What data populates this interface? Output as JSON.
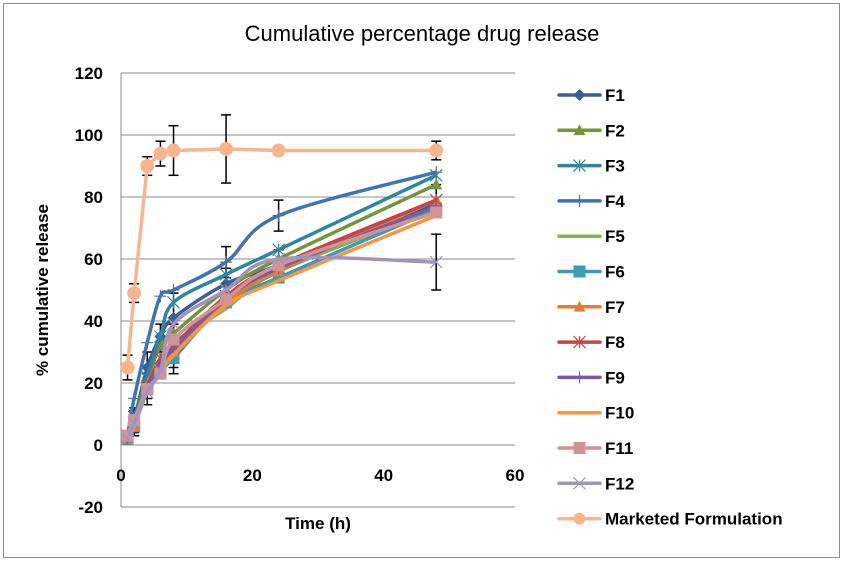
{
  "chart_data": {
    "type": "line",
    "title": "Cumulative percentage drug release",
    "xlabel": "Time (h)",
    "ylabel": "% cumulative release",
    "xlim": [
      0,
      60
    ],
    "ylim": [
      -20,
      120
    ],
    "x_ticks": [
      0,
      20,
      40,
      60
    ],
    "y_ticks": [
      -20,
      0,
      20,
      40,
      60,
      80,
      100,
      120
    ],
    "grid": "horizontal",
    "legend_position": "right",
    "error_bars": true,
    "x": [
      1,
      2,
      4,
      6,
      8,
      16,
      24,
      48
    ],
    "series": [
      {
        "name": "F1",
        "color": "#3a5f97",
        "marker": "diamond",
        "values": [
          2,
          8,
          25,
          35,
          41,
          52,
          58,
          78
        ]
      },
      {
        "name": "F2",
        "color": "#77933c",
        "marker": "triangle",
        "values": [
          2,
          7,
          21,
          32,
          36,
          50,
          60,
          84
        ]
      },
      {
        "name": "F3",
        "color": "#31859c",
        "marker": "asterisk",
        "values": [
          3,
          9,
          22,
          35,
          46,
          55,
          63,
          87
        ]
      },
      {
        "name": "F4",
        "color": "#4472b0",
        "marker": "plus",
        "values": [
          3,
          15,
          33,
          48,
          50,
          59,
          74,
          88
        ]
      },
      {
        "name": "F5",
        "color": "#8db050",
        "marker": "none",
        "values": [
          2,
          7,
          20,
          27,
          33,
          44,
          56,
          76
        ]
      },
      {
        "name": "F6",
        "color": "#3d9bb5",
        "marker": "square",
        "values": [
          2,
          6,
          18,
          24,
          28,
          46,
          54,
          76
        ]
      },
      {
        "name": "F7",
        "color": "#e07f34",
        "marker": "triangle",
        "values": [
          2,
          6,
          18,
          25,
          30,
          46,
          56,
          79
        ]
      },
      {
        "name": "F8",
        "color": "#c0464a",
        "marker": "asterisk",
        "values": [
          2,
          7,
          19,
          28,
          32,
          48,
          58,
          79
        ]
      },
      {
        "name": "F9",
        "color": "#7b5ba3",
        "marker": "plus",
        "values": [
          2,
          7,
          18,
          26,
          31,
          47,
          57,
          77
        ]
      },
      {
        "name": "F10",
        "color": "#f79646",
        "marker": "none",
        "values": [
          2,
          6,
          17,
          23,
          29,
          45,
          53,
          74
        ]
      },
      {
        "name": "F11",
        "color": "#d39395",
        "marker": "square",
        "values": [
          3,
          8,
          18,
          23,
          34,
          47,
          58,
          75
        ]
      },
      {
        "name": "F12",
        "color": "#a295bd",
        "marker": "x",
        "values": [
          2,
          7,
          17,
          24,
          39,
          50,
          60,
          59
        ]
      },
      {
        "name": "Marketed Formulation",
        "color": "#f9b58e",
        "marker": "circle",
        "values": [
          25,
          49,
          90,
          94,
          95,
          95.5,
          95,
          95
        ]
      }
    ],
    "marketed_error": [
      4,
      3,
      3,
      4,
      8,
      11,
      1,
      3
    ],
    "formulation_error_at_48": 9
  }
}
